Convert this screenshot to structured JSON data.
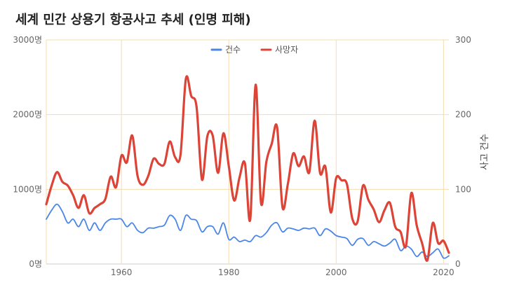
{
  "chart_data": {
    "type": "line",
    "title": "세계 민간 상용기 항공사고 추세 (인명 피해)",
    "x_ticks": [
      1960,
      1980,
      2000,
      2020
    ],
    "xlim": [
      1946,
      2021
    ],
    "y_left": {
      "ticks": [
        "0명",
        "1000명",
        "2000명",
        "3000명"
      ],
      "lim": [
        0,
        3000
      ]
    },
    "y_right": {
      "label": "사고 건수",
      "ticks": [
        "0",
        "100",
        "200",
        "300"
      ],
      "lim": [
        0,
        300
      ]
    },
    "grid": true,
    "legend_position": "top-center",
    "series": [
      {
        "name": "건수",
        "axis": "right",
        "color": "#4a86e8",
        "x": [
          1946,
          1947,
          1948,
          1949,
          1950,
          1951,
          1952,
          1953,
          1954,
          1955,
          1956,
          1957,
          1958,
          1959,
          1960,
          1961,
          1962,
          1963,
          1964,
          1965,
          1966,
          1967,
          1968,
          1969,
          1970,
          1971,
          1972,
          1973,
          1974,
          1975,
          1976,
          1977,
          1978,
          1979,
          1980,
          1981,
          1982,
          1983,
          1984,
          1985,
          1986,
          1987,
          1988,
          1989,
          1990,
          1991,
          1992,
          1993,
          1994,
          1995,
          1996,
          1997,
          1998,
          1999,
          2000,
          2001,
          2002,
          2003,
          2004,
          2005,
          2006,
          2007,
          2008,
          2009,
          2010,
          2011,
          2012,
          2013,
          2014,
          2015,
          2016,
          2017,
          2018,
          2019,
          2020,
          2021
        ],
        "values": [
          60,
          72,
          80,
          70,
          55,
          60,
          50,
          60,
          45,
          55,
          45,
          55,
          60,
          60,
          60,
          50,
          55,
          45,
          42,
          48,
          48,
          50,
          52,
          65,
          60,
          45,
          65,
          60,
          58,
          43,
          50,
          50,
          40,
          55,
          33,
          36,
          30,
          32,
          30,
          38,
          36,
          42,
          52,
          55,
          43,
          48,
          47,
          45,
          48,
          47,
          48,
          38,
          47,
          44,
          38,
          36,
          34,
          25,
          33,
          34,
          25,
          30,
          27,
          24,
          28,
          33,
          18,
          24,
          20,
          10,
          16,
          10,
          15,
          20,
          8,
          11
        ]
      },
      {
        "name": "사망자",
        "axis": "left",
        "color": "#db4437",
        "x": [
          1946,
          1947,
          1948,
          1949,
          1950,
          1951,
          1952,
          1953,
          1954,
          1955,
          1956,
          1957,
          1958,
          1959,
          1960,
          1961,
          1962,
          1963,
          1964,
          1965,
          1966,
          1967,
          1968,
          1969,
          1970,
          1971,
          1972,
          1973,
          1974,
          1975,
          1976,
          1977,
          1978,
          1979,
          1980,
          1981,
          1982,
          1983,
          1984,
          1985,
          1986,
          1987,
          1988,
          1989,
          1990,
          1991,
          1992,
          1993,
          1994,
          1995,
          1996,
          1997,
          1998,
          1999,
          2000,
          2001,
          2002,
          2003,
          2004,
          2005,
          2006,
          2007,
          2008,
          2009,
          2010,
          2011,
          2012,
          2013,
          2014,
          2015,
          2016,
          2017,
          2018,
          2019,
          2020,
          2021
        ],
        "values": [
          800,
          1050,
          1230,
          1100,
          1050,
          920,
          750,
          920,
          680,
          750,
          800,
          870,
          1170,
          1030,
          1450,
          1360,
          1720,
          1180,
          1060,
          1180,
          1410,
          1340,
          1340,
          1640,
          1430,
          1460,
          2480,
          2250,
          2100,
          1130,
          1710,
          1720,
          1220,
          1750,
          1310,
          850,
          1160,
          1350,
          600,
          2400,
          820,
          1370,
          1610,
          1830,
          760,
          1070,
          1480,
          1310,
          1440,
          1230,
          1920,
          1220,
          1300,
          690,
          1150,
          1120,
          1070,
          610,
          570,
          1050,
          860,
          730,
          560,
          720,
          820,
          500,
          430,
          240,
          950,
          520,
          280,
          50,
          550,
          280,
          310,
          150
        ]
      }
    ]
  }
}
